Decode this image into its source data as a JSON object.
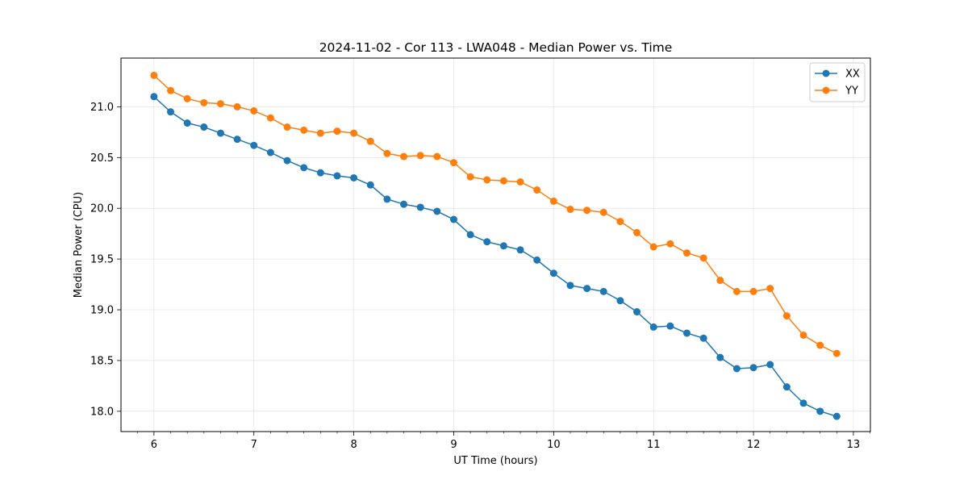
{
  "chart_data": {
    "type": "line",
    "title": "2024-11-02 - Cor 113 - LWA048 - Median Power vs. Time",
    "xlabel": "UT Time (hours)",
    "ylabel": "Median Power (CPU)",
    "xlim": [
      5.67,
      13.17
    ],
    "ylim": [
      17.8,
      21.48
    ],
    "xticks": [
      6,
      7,
      8,
      9,
      10,
      11,
      12,
      13
    ],
    "xtick_labels": [
      "6",
      "7",
      "8",
      "9",
      "10",
      "11",
      "12",
      "13"
    ],
    "yticks": [
      18.0,
      18.5,
      19.0,
      19.5,
      20.0,
      20.5,
      21.0
    ],
    "ytick_labels": [
      "18.0",
      "18.5",
      "19.0",
      "19.5",
      "20.0",
      "20.5",
      "21.0"
    ],
    "grid": true,
    "legend_position": "top-right",
    "x": [
      6.0,
      6.1667,
      6.3333,
      6.5,
      6.6667,
      6.8333,
      7.0,
      7.1667,
      7.3333,
      7.5,
      7.6667,
      7.8333,
      8.0,
      8.1667,
      8.3333,
      8.5,
      8.6667,
      8.8333,
      9.0,
      9.1667,
      9.3333,
      9.5,
      9.6667,
      9.8333,
      10.0,
      10.1667,
      10.3333,
      10.5,
      10.6667,
      10.8333,
      11.0,
      11.1667,
      11.3333,
      11.5,
      11.6667,
      11.8333,
      12.0,
      12.1667,
      12.3333,
      12.5,
      12.6667,
      12.8333
    ],
    "series": [
      {
        "name": "XX",
        "color": "#1f77b4",
        "values": [
          21.1,
          20.95,
          20.84,
          20.8,
          20.74,
          20.68,
          20.62,
          20.55,
          20.47,
          20.4,
          20.35,
          20.32,
          20.3,
          20.23,
          20.09,
          20.04,
          20.01,
          19.97,
          19.89,
          19.74,
          19.67,
          19.63,
          19.59,
          19.49,
          19.36,
          19.24,
          19.21,
          19.18,
          19.09,
          18.98,
          18.83,
          18.84,
          18.77,
          18.72,
          18.53,
          18.42,
          18.43,
          18.46,
          18.24,
          18.08,
          18.0,
          17.95
        ]
      },
      {
        "name": "YY",
        "color": "#ff7f0e",
        "values": [
          21.31,
          21.16,
          21.08,
          21.04,
          21.03,
          21.0,
          20.96,
          20.89,
          20.8,
          20.77,
          20.74,
          20.76,
          20.74,
          20.66,
          20.54,
          20.51,
          20.52,
          20.51,
          20.45,
          20.31,
          20.28,
          20.27,
          20.26,
          20.18,
          20.07,
          19.99,
          19.98,
          19.96,
          19.87,
          19.76,
          19.62,
          19.65,
          19.56,
          19.51,
          19.29,
          19.18,
          19.18,
          19.21,
          18.94,
          18.75,
          18.65,
          18.57
        ]
      }
    ]
  }
}
